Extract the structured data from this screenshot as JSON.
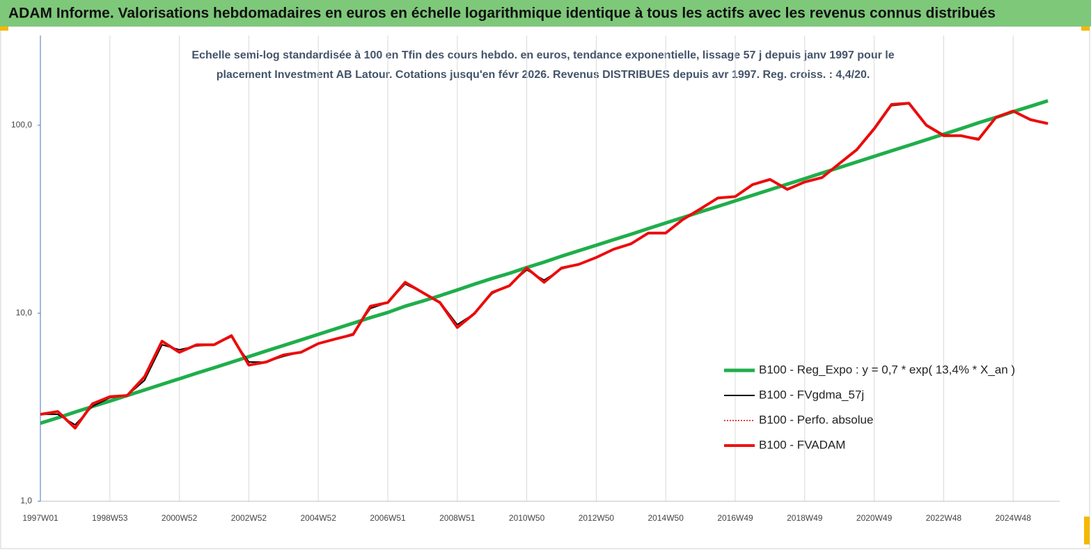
{
  "chart_data": {
    "type": "line",
    "title": "ADAM Informe. Valorisations hebdomadaires en euros en échelle logarithmique identique à tous les actifs avec les revenus connus distribués",
    "subtitle": [
      "Echelle semi-log standardisée à 100 en Tfin des cours hebdo. en euros, tendance exponentielle, lissage 57 j depuis janv 1997 pour le",
      "placement Investment AB Latour. Cotations jusqu'en févr 2026. Revenus DISTRIBUES depuis avr 1997. Reg. croiss. : 4,4/20."
    ],
    "log_scale": true,
    "grid": "vertical",
    "legend": "lower right",
    "ylim": [
      1,
      300
    ],
    "yticks": [
      {
        "value": 1,
        "label": "1,0"
      },
      {
        "value": 10,
        "label": "10,0"
      },
      {
        "value": 100,
        "label": "100,0"
      }
    ],
    "categories": [
      "1997W01",
      null,
      null,
      null,
      "1998W53",
      null,
      null,
      null,
      "2000W52",
      null,
      null,
      null,
      "2002W52",
      null,
      null,
      null,
      "2004W52",
      null,
      null,
      null,
      "2006W51",
      null,
      null,
      null,
      "2008W51",
      null,
      null,
      null,
      "2010W50",
      null,
      null,
      null,
      "2012W50",
      null,
      null,
      null,
      "2014W50",
      null,
      null,
      null,
      "2016W49",
      null,
      null,
      null,
      "2018W49",
      null,
      null,
      null,
      "2020W49",
      null,
      null,
      null,
      "2022W48",
      null,
      null,
      null,
      "2024W48",
      null,
      null
    ],
    "series": [
      {
        "name": "B100 - Reg_Expo : y = 0,7 * exp( 13,4% *  X_an )",
        "color": "#1fae4b",
        "values": [
          2.6,
          2.78,
          2.98,
          3.19,
          3.41,
          3.65,
          3.91,
          4.19,
          4.48,
          4.8,
          5.13,
          5.49,
          5.88,
          6.3,
          6.74,
          7.21,
          7.72,
          8.27,
          8.85,
          9.47,
          10.1,
          10.9,
          11.6,
          12.4,
          13.3,
          14.3,
          15.3,
          16.3,
          17.5,
          18.7,
          20.1,
          21.5,
          23.0,
          24.6,
          26.3,
          28.2,
          30.2,
          32.3,
          34.6,
          37.0,
          39.6,
          42.4,
          45.4,
          48.6,
          52.0,
          55.7,
          59.6,
          63.8,
          68.3,
          73.1,
          78.2,
          83.7,
          89.6,
          95.9,
          103,
          110,
          118,
          126,
          135
        ]
      },
      {
        "name": "B100 - FVgdma_57j",
        "color": "#000000",
        "values": [
          2.9,
          2.9,
          2.55,
          3.2,
          3.55,
          3.65,
          4.4,
          6.8,
          6.4,
          6.7,
          6.8,
          7.5,
          5.5,
          5.5,
          5.9,
          6.2,
          6.9,
          7.3,
          7.8,
          10.6,
          11.4,
          14.3,
          12.9,
          11.5,
          8.7,
          10.0,
          12.7,
          14.1,
          17.0,
          15.0,
          17.2,
          18.2,
          19.8,
          21.8,
          23.4,
          26.5,
          26.9,
          31.3,
          35.6,
          40.8,
          41.9,
          48.0,
          51.0,
          46.0,
          49.7,
          52.8,
          62.0,
          73.5,
          94.5,
          127,
          130,
          101,
          89,
          88,
          85,
          109,
          118,
          108,
          102
        ]
      },
      {
        "name": "B100 - Perfo. absolue",
        "color": "#e00000",
        "dashed": true,
        "values": [
          2.9,
          3.0,
          2.45,
          3.3,
          3.6,
          3.65,
          4.6,
          7.1,
          6.2,
          6.8,
          6.8,
          7.6,
          5.3,
          5.5,
          6.0,
          6.2,
          6.9,
          7.3,
          7.7,
          10.9,
          11.4,
          14.6,
          12.9,
          11.4,
          8.4,
          10.0,
          12.9,
          14.0,
          17.4,
          14.6,
          17.4,
          18.2,
          19.8,
          21.9,
          23.4,
          26.7,
          26.7,
          31.6,
          35.9,
          41.0,
          41.7,
          48.3,
          51.5,
          45.6,
          49.9,
          52.7,
          62.6,
          74.1,
          95.9,
          129,
          131,
          100,
          88,
          88,
          84,
          110,
          119,
          107,
          102
        ]
      },
      {
        "name": "B100 - FVADAM",
        "color": "#ee1111",
        "values": [
          2.9,
          3.0,
          2.45,
          3.3,
          3.6,
          3.65,
          4.6,
          7.1,
          6.2,
          6.8,
          6.8,
          7.6,
          5.3,
          5.5,
          6.0,
          6.2,
          6.9,
          7.3,
          7.7,
          10.9,
          11.4,
          14.6,
          12.9,
          11.4,
          8.4,
          10.0,
          12.9,
          14.0,
          17.4,
          14.6,
          17.4,
          18.2,
          19.8,
          21.9,
          23.4,
          26.7,
          26.7,
          31.6,
          35.9,
          41.0,
          41.7,
          48.3,
          51.5,
          45.6,
          49.9,
          52.7,
          62.6,
          74.1,
          95.9,
          129,
          131,
          100,
          88,
          88,
          84,
          110,
          119,
          107,
          102
        ]
      }
    ]
  }
}
